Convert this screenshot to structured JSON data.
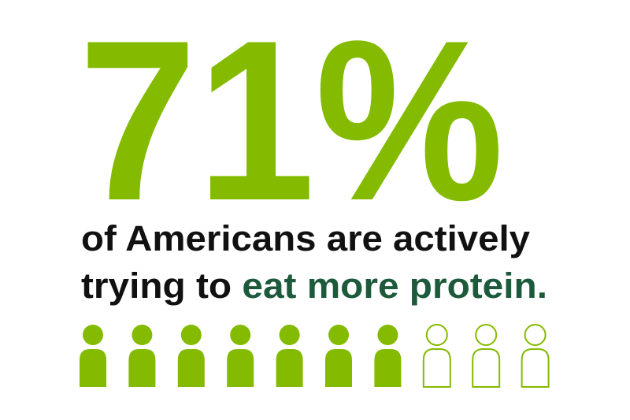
{
  "headline": "71%",
  "caption": {
    "line1": "of Americans are actively",
    "line2_plain": "trying to",
    "line2_highlight": "eat more protein."
  }
}
